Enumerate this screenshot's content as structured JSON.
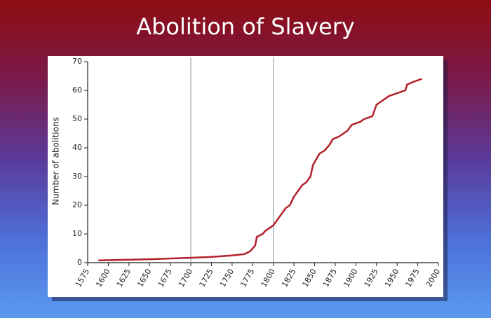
{
  "chart_data": {
    "type": "line",
    "title": "Abolition of Slavery",
    "y_label": "Number of abolitions",
    "xlim": [
      1575,
      2000
    ],
    "ylim": [
      0,
      70
    ],
    "xticks": [
      1575,
      1600,
      1625,
      1650,
      1675,
      1700,
      1725,
      1750,
      1775,
      1800,
      1825,
      1850,
      1875,
      1900,
      1925,
      1950,
      1975,
      2000
    ],
    "yticks": [
      0,
      10,
      20,
      30,
      40,
      50,
      60,
      70
    ],
    "vlines": [
      1700,
      1800
    ],
    "series": [
      {
        "color": "#b3202c",
        "x": [
          1588,
          1650,
          1700,
          1725,
          1750,
          1765,
          1772,
          1778,
          1780,
          1787,
          1790,
          1795,
          1800,
          1805,
          1810,
          1815,
          1820,
          1825,
          1830,
          1835,
          1840,
          1845,
          1848,
          1852,
          1856,
          1862,
          1868,
          1872,
          1880,
          1885,
          1890,
          1895,
          1905,
          1910,
          1920,
          1925,
          1930,
          1935,
          1940,
          1950,
          1960,
          1962,
          1970,
          1980
        ],
        "values": [
          0.8,
          1.2,
          1.7,
          2,
          2.5,
          3,
          4,
          6,
          9,
          10,
          11,
          12,
          13,
          15,
          17,
          19,
          20,
          23,
          25,
          27,
          28,
          30,
          34,
          36,
          38,
          39,
          41,
          43,
          44,
          45,
          46,
          48,
          49,
          50,
          51,
          55,
          56,
          57,
          58,
          59,
          60,
          62,
          63,
          64
        ]
      }
    ]
  }
}
